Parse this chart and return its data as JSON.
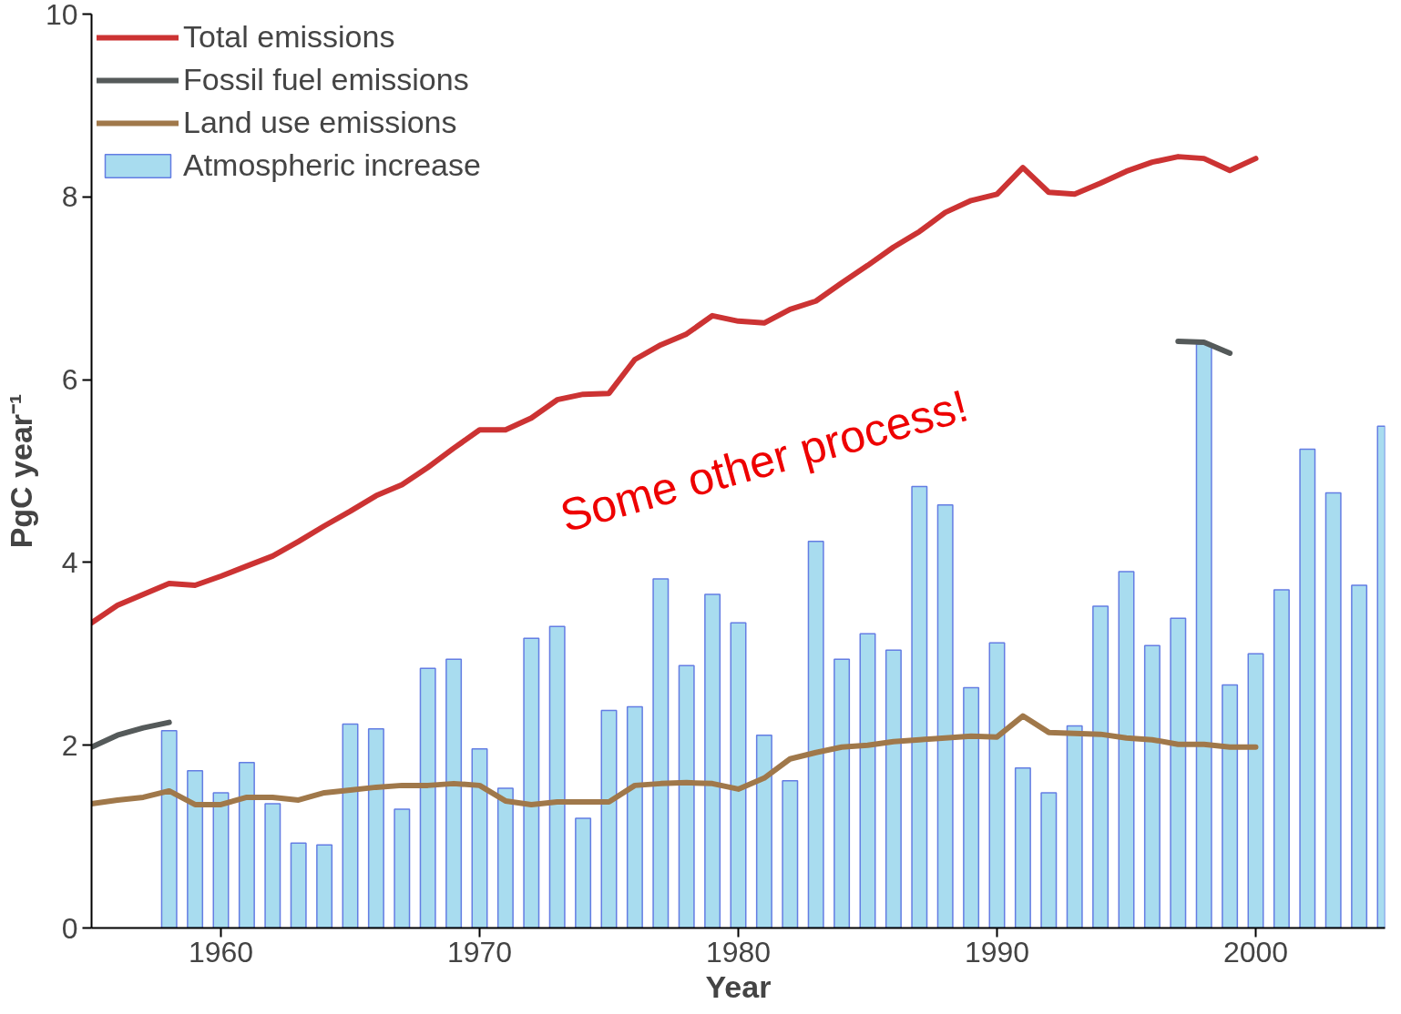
{
  "chart_data": {
    "type": "bar",
    "xlabel": "Year",
    "ylabel": "PgC year⁻¹",
    "xlim": [
      1955,
      2005
    ],
    "ylim": [
      0,
      10
    ],
    "xticks": [
      1960,
      1970,
      1980,
      1990,
      2000
    ],
    "yticks": [
      0,
      2,
      4,
      6,
      8,
      10
    ],
    "grid": false,
    "legend": "top left",
    "annotations": [
      "Some other process!"
    ],
    "series": [
      {
        "name": "Total emissions",
        "type": "line",
        "color": "#cc3333",
        "x": [
          1955,
          1956,
          1957,
          1958,
          1959,
          1960,
          1961,
          1962,
          1963,
          1964,
          1965,
          1966,
          1967,
          1968,
          1969,
          1970,
          1971,
          1972,
          1973,
          1974,
          1975,
          1976,
          1977,
          1978,
          1979,
          1980,
          1981,
          1982,
          1983,
          1984,
          1985,
          1986,
          1987,
          1988,
          1989,
          1990,
          1991,
          1992,
          1993,
          1994,
          1995,
          1996,
          1997,
          1998,
          1999,
          2000
        ],
        "values": [
          3.34,
          3.53,
          3.65,
          3.77,
          3.75,
          3.85,
          3.96,
          4.07,
          4.23,
          4.4,
          4.56,
          4.73,
          4.85,
          5.04,
          5.25,
          5.45,
          5.45,
          5.58,
          5.78,
          5.84,
          5.85,
          6.22,
          6.38,
          6.5,
          6.7,
          6.64,
          6.62,
          6.77,
          6.86,
          7.06,
          7.25,
          7.45,
          7.62,
          7.83,
          7.96,
          8.03,
          8.32,
          8.05,
          8.03,
          8.15,
          8.28,
          8.38,
          8.44,
          8.42,
          8.29,
          8.42
        ]
      },
      {
        "name": "Fossil fuel emissions",
        "type": "line",
        "color": "#555a5a",
        "x": [
          1955,
          1956,
          1957,
          1958,
          1997,
          1998,
          1999
        ],
        "values": [
          1.98,
          2.11,
          2.19,
          2.25,
          6.42,
          6.41,
          6.29
        ]
      },
      {
        "name": "Land use emissions",
        "type": "line",
        "color": "#a0784a",
        "x": [
          1955,
          1956,
          1957,
          1958,
          1959,
          1960,
          1961,
          1962,
          1963,
          1964,
          1965,
          1966,
          1967,
          1968,
          1969,
          1970,
          1971,
          1972,
          1973,
          1974,
          1975,
          1976,
          1977,
          1978,
          1979,
          1980,
          1981,
          1982,
          1983,
          1984,
          1985,
          1986,
          1987,
          1988,
          1989,
          1990,
          1991,
          1992,
          1993,
          1994,
          1995,
          1996,
          1997,
          1998,
          1999,
          2000
        ],
        "values": [
          1.36,
          1.4,
          1.43,
          1.5,
          1.35,
          1.35,
          1.43,
          1.43,
          1.4,
          1.48,
          1.51,
          1.54,
          1.56,
          1.56,
          1.58,
          1.56,
          1.39,
          1.35,
          1.38,
          1.38,
          1.38,
          1.56,
          1.58,
          1.59,
          1.58,
          1.52,
          1.64,
          1.85,
          1.92,
          1.98,
          2.0,
          2.04,
          2.06,
          2.08,
          2.1,
          2.09,
          2.32,
          2.14,
          2.13,
          2.12,
          2.08,
          2.06,
          2.01,
          2.01,
          1.98,
          1.98
        ]
      },
      {
        "name": "Atmospheric increase",
        "color": "#a8dcef",
        "x": [
          1958,
          1959,
          1960,
          1961,
          1962,
          1963,
          1964,
          1965,
          1966,
          1967,
          1968,
          1969,
          1970,
          1971,
          1972,
          1973,
          1974,
          1975,
          1976,
          1977,
          1978,
          1979,
          1980,
          1981,
          1982,
          1983,
          1984,
          1985,
          1986,
          1987,
          1988,
          1989,
          1990,
          1991,
          1992,
          1993,
          1994,
          1995,
          1996,
          1997,
          1998,
          1999,
          2000,
          2001,
          2002,
          2003,
          2004,
          2005
        ],
        "values": [
          2.16,
          1.72,
          1.48,
          1.81,
          1.36,
          0.93,
          0.91,
          2.23,
          2.18,
          1.3,
          2.84,
          2.94,
          1.96,
          1.53,
          3.17,
          3.3,
          1.2,
          2.38,
          2.42,
          3.82,
          2.87,
          3.65,
          3.34,
          2.11,
          1.61,
          4.23,
          2.94,
          3.22,
          3.04,
          4.83,
          4.63,
          2.63,
          3.12,
          1.75,
          1.48,
          2.21,
          3.52,
          3.9,
          3.09,
          3.39,
          6.39,
          2.66,
          3.0,
          3.7,
          5.24,
          4.76,
          3.75,
          5.49
        ]
      }
    ]
  }
}
